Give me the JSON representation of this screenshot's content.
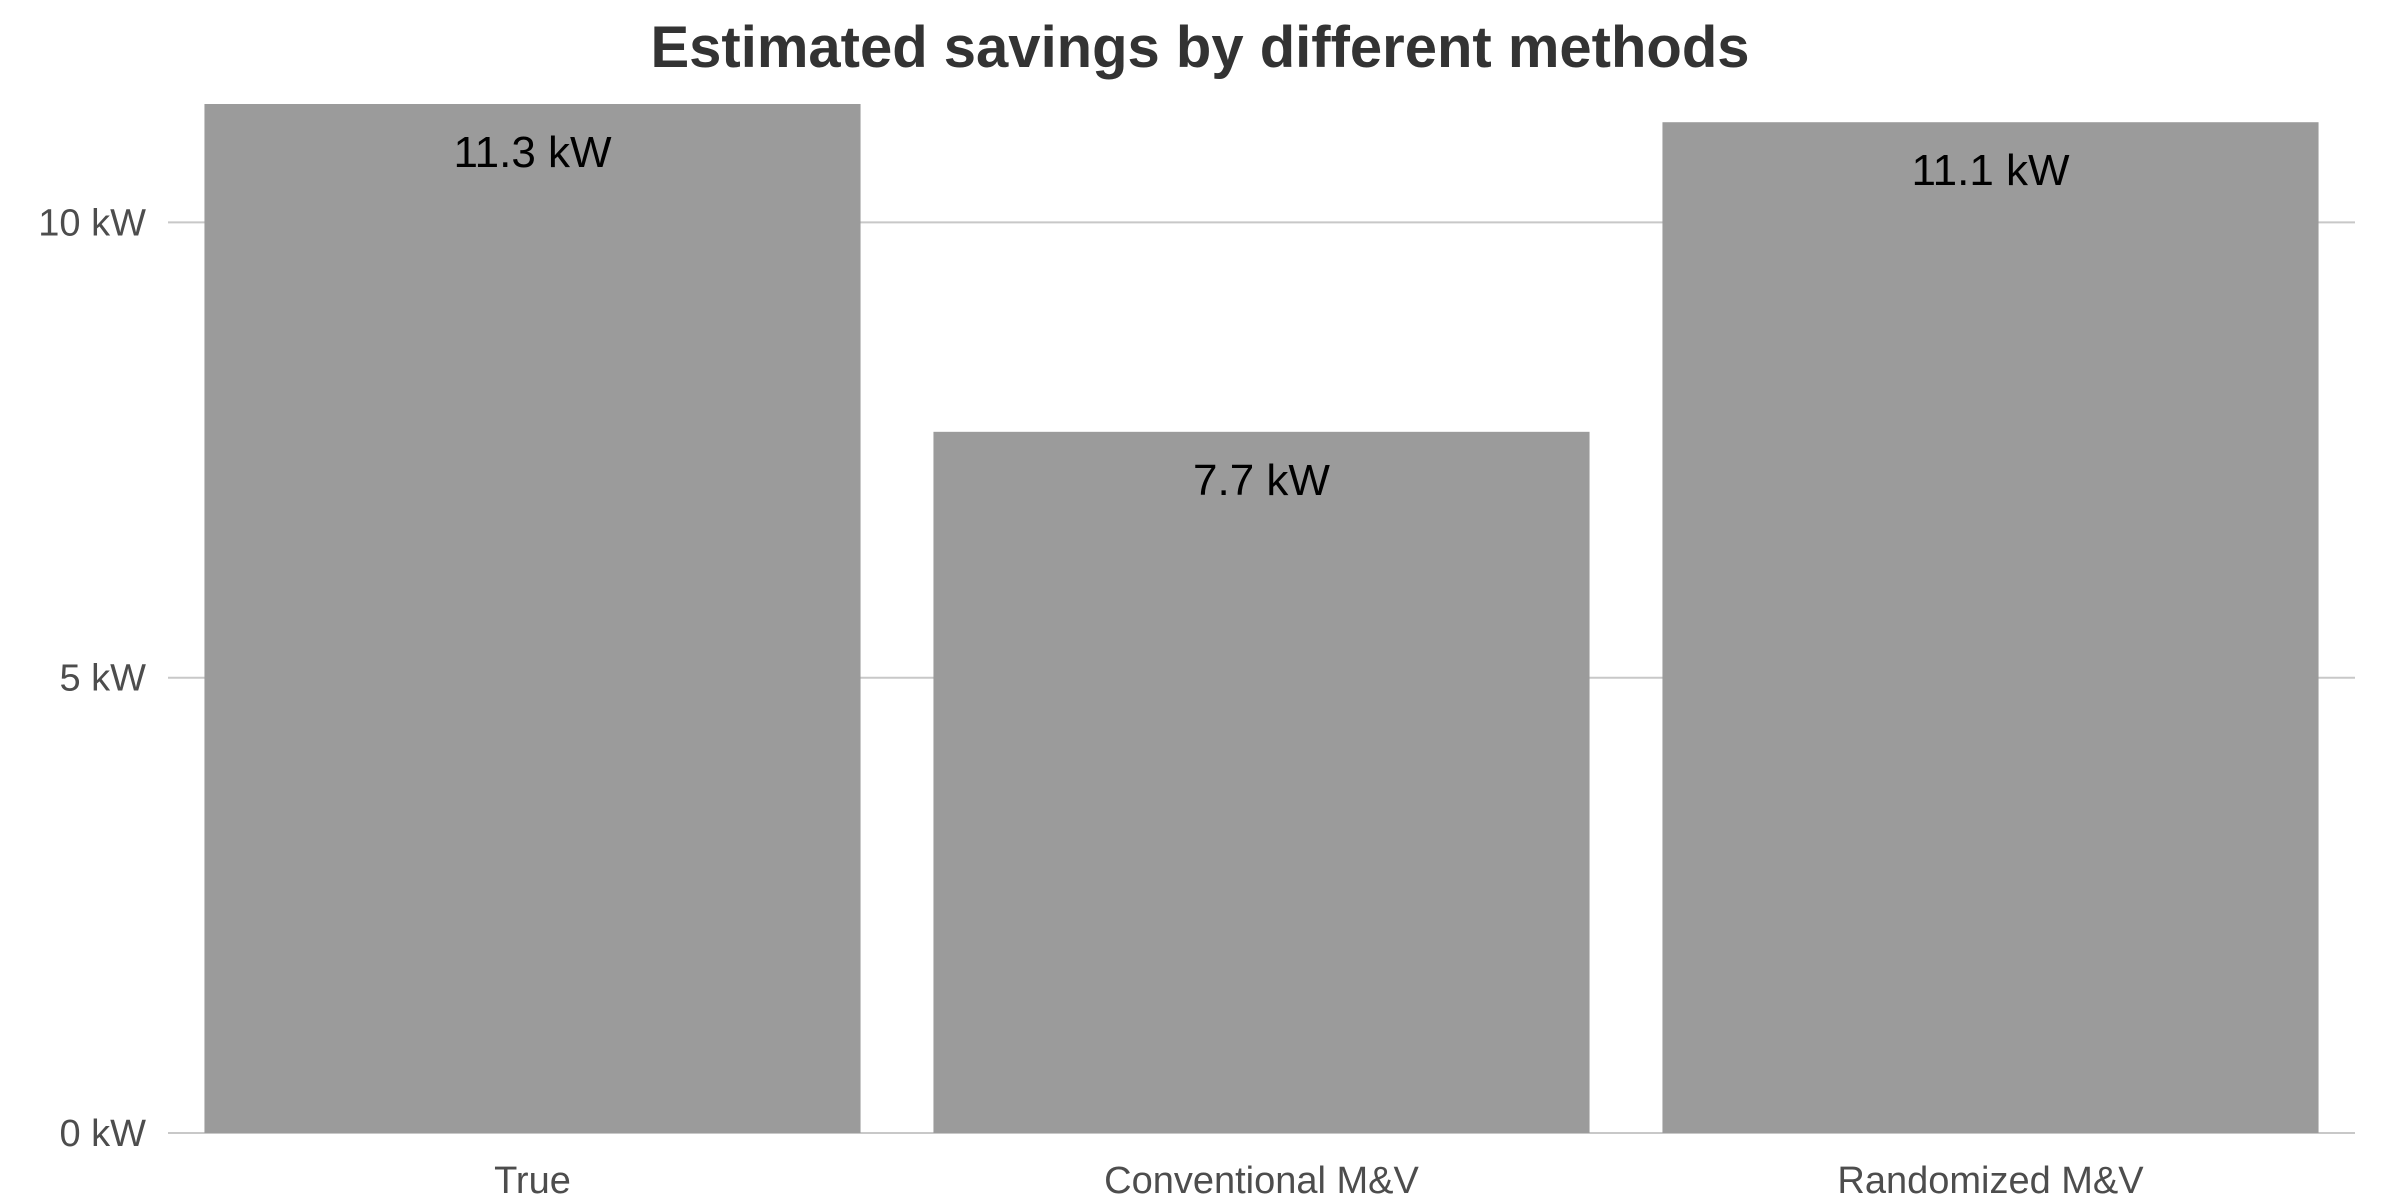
{
  "chart_data": {
    "type": "bar",
    "title": "Estimated savings by different methods",
    "categories": [
      "True",
      "Conventional M&V",
      "Randomized M&V"
    ],
    "values": [
      11.3,
      7.7,
      11.1
    ],
    "data_labels": [
      "11.3 kW",
      "7.7 kW",
      "11.1 kW"
    ],
    "unit": "kW",
    "xlabel": "",
    "ylabel": "",
    "ylim": [
      0,
      11.3
    ],
    "yticks": [
      0,
      5,
      10
    ],
    "ytick_labels": [
      "0 kW",
      "5 kW",
      "10 kW"
    ],
    "grid": true,
    "legend": "none",
    "colors": {
      "bar": "#9b9b9b",
      "grid": "#c8c8c8",
      "title": "#333333",
      "tick_label": "#4d4d4d",
      "data_label": "#000000"
    }
  }
}
